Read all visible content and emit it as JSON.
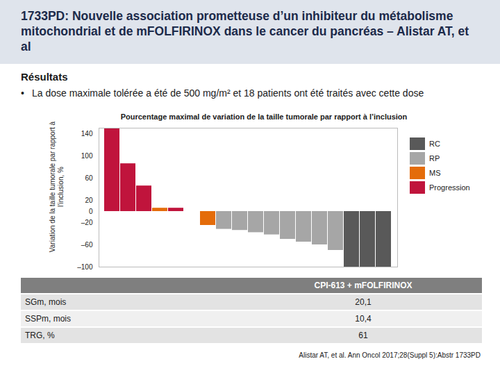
{
  "header": {
    "title": "1733PD: Nouvelle association prometteuse d’un inhibiteur du métabolisme mitochondrial et de mFOLFIRINOX dans le cancer du pancréas – Alistar AT, et al"
  },
  "section": "Résultats",
  "bullet": "La dose maximale tolérée a été de 500 mg/m² et 18 patients ont été traités avec cette dose",
  "chart_data": {
    "type": "bar",
    "title": "Pourcentage maximal de variation de la taille tumorale par rapport à l’inclusion",
    "ylabel": "Variation de la taille tumorale par rapport à l’inclusion, %",
    "categories": [
      null,
      null,
      null,
      null,
      null,
      null,
      null,
      null,
      null,
      null,
      null,
      null,
      null,
      null,
      null,
      null,
      null,
      null
    ],
    "series": [
      {
        "name": "RC",
        "color": "#595959",
        "values": [
          null,
          null,
          null,
          null,
          null,
          null,
          null,
          null,
          null,
          null,
          null,
          null,
          null,
          null,
          null,
          -100,
          -100,
          -100
        ]
      },
      {
        "name": "RP",
        "color": "#a6a6a6",
        "values": [
          null,
          null,
          null,
          null,
          null,
          null,
          null,
          -32,
          -34,
          -38,
          -42,
          -50,
          -55,
          -60,
          -70,
          null,
          null,
          null
        ]
      },
      {
        "name": "MS",
        "color": "#e46c0a",
        "values": [
          null,
          null,
          null,
          6,
          null,
          0,
          -25,
          null,
          null,
          null,
          null,
          null,
          null,
          null,
          null,
          null,
          null,
          null
        ]
      },
      {
        "name": "Progression",
        "color": "#c0143c",
        "values": [
          150,
          86,
          46,
          null,
          6,
          null,
          null,
          null,
          null,
          null,
          null,
          null,
          null,
          null,
          null,
          null,
          null,
          null
        ]
      }
    ],
    "ylim": [
      -100,
      150
    ],
    "yticks": [
      {
        "value": -100,
        "label": "–100"
      },
      {
        "value": -60,
        "label": "–60"
      },
      {
        "value": -20,
        "label": "–20"
      },
      0,
      20,
      60,
      100,
      140
    ],
    "legend": "right",
    "tick_labels": "y",
    "grid": false
  },
  "table": {
    "header": "CPI-613 + mFOLFIRINOX",
    "rows": [
      [
        "SGm, mois",
        "20,1"
      ],
      [
        "SSPm, mois",
        "10,4"
      ],
      [
        "TRG, %",
        "61"
      ]
    ]
  },
  "source": "Alistar AT, et al. Ann Oncol 2017;28(Suppl 5):Abstr 1733PD"
}
